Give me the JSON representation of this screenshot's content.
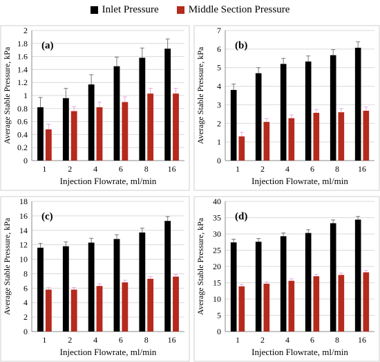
{
  "legend": {
    "items": [
      {
        "label": "Inlet Pressure",
        "color": "#000000"
      },
      {
        "label": "Middle Section Pressure",
        "color": "#b52a1c"
      }
    ]
  },
  "chart_data": [
    {
      "type": "bar",
      "panel_label": "(a)",
      "categories": [
        "1",
        "2",
        "4",
        "6",
        "8",
        "16"
      ],
      "series": [
        {
          "name": "Inlet Pressure",
          "values": [
            0.82,
            0.96,
            1.17,
            1.45,
            1.58,
            1.72
          ],
          "errors": [
            0.15,
            0.15,
            0.15,
            0.14,
            0.15,
            0.15
          ]
        },
        {
          "name": "Middle Section Pressure",
          "values": [
            0.48,
            0.76,
            0.82,
            0.9,
            1.03,
            1.03
          ],
          "errors": [
            0.08,
            0.07,
            0.08,
            0.08,
            0.08,
            0.08
          ]
        }
      ],
      "xlabel": "Injection Flowrate, ml/min",
      "ylabel": "Average Stable Pressure, kPa",
      "ylim": [
        0,
        2
      ],
      "yticks": [
        "0",
        "0.2",
        "0.4",
        "0.6",
        "0.8",
        "1",
        "1.2",
        "1.4",
        "1.6",
        "1.8",
        "2"
      ]
    },
    {
      "type": "bar",
      "panel_label": "(b)",
      "categories": [
        "1",
        "2",
        "4",
        "6",
        "8",
        "16"
      ],
      "series": [
        {
          "name": "Inlet Pressure",
          "values": [
            3.8,
            4.7,
            5.2,
            5.33,
            5.67,
            6.07
          ],
          "errors": [
            0.32,
            0.3,
            0.3,
            0.3,
            0.3,
            0.32
          ]
        },
        {
          "name": "Middle Section Pressure",
          "values": [
            1.3,
            2.08,
            2.28,
            2.57,
            2.6,
            2.68
          ],
          "errors": [
            0.22,
            0.18,
            0.18,
            0.18,
            0.2,
            0.2
          ]
        }
      ],
      "xlabel": "Injection Flowrate, ml/min",
      "ylabel": "Average Stable Pressure, kPa",
      "ylim": [
        0,
        7
      ],
      "yticks": [
        "0",
        "1",
        "2",
        "3",
        "4",
        "5",
        "6",
        "7"
      ]
    },
    {
      "type": "bar",
      "panel_label": "(c)",
      "categories": [
        "1",
        "2",
        "4",
        "6",
        "8",
        "16"
      ],
      "series": [
        {
          "name": "Inlet Pressure",
          "values": [
            11.6,
            11.8,
            12.3,
            12.8,
            13.7,
            15.3
          ],
          "errors": [
            0.6,
            0.6,
            0.6,
            0.6,
            0.6,
            0.6
          ]
        },
        {
          "name": "Middle Section Pressure",
          "values": [
            5.8,
            5.8,
            6.3,
            6.8,
            7.3,
            7.6
          ],
          "errors": [
            0.3,
            0.3,
            0.3,
            0.3,
            0.3,
            0.3
          ]
        }
      ],
      "xlabel": "Injection Flowrate, ml/min",
      "ylabel": "Average Stable Pressure, kPa",
      "ylim": [
        0,
        18
      ],
      "yticks": [
        "0",
        "2",
        "4",
        "6",
        "8",
        "10",
        "12",
        "14",
        "16",
        "18"
      ]
    },
    {
      "type": "bar",
      "panel_label": "(d)",
      "categories": [
        "1",
        "2",
        "4",
        "6",
        "8",
        "16"
      ],
      "series": [
        {
          "name": "Inlet Pressure",
          "values": [
            27.4,
            27.6,
            29.3,
            30.3,
            33.3,
            34.4
          ],
          "errors": [
            1.0,
            1.0,
            1.0,
            1.0,
            1.0,
            1.0
          ]
        },
        {
          "name": "Middle Section Pressure",
          "values": [
            13.9,
            14.7,
            15.6,
            17.0,
            17.4,
            18.2
          ],
          "errors": [
            0.6,
            0.6,
            0.6,
            0.6,
            0.6,
            0.6
          ]
        }
      ],
      "xlabel": "Injection Flowrate, ml/min",
      "ylabel": "Average Stable Pressure, kPa",
      "ylim": [
        0,
        40
      ],
      "yticks": [
        "0",
        "5",
        "10",
        "15",
        "20",
        "25",
        "30",
        "35",
        "40"
      ]
    }
  ]
}
